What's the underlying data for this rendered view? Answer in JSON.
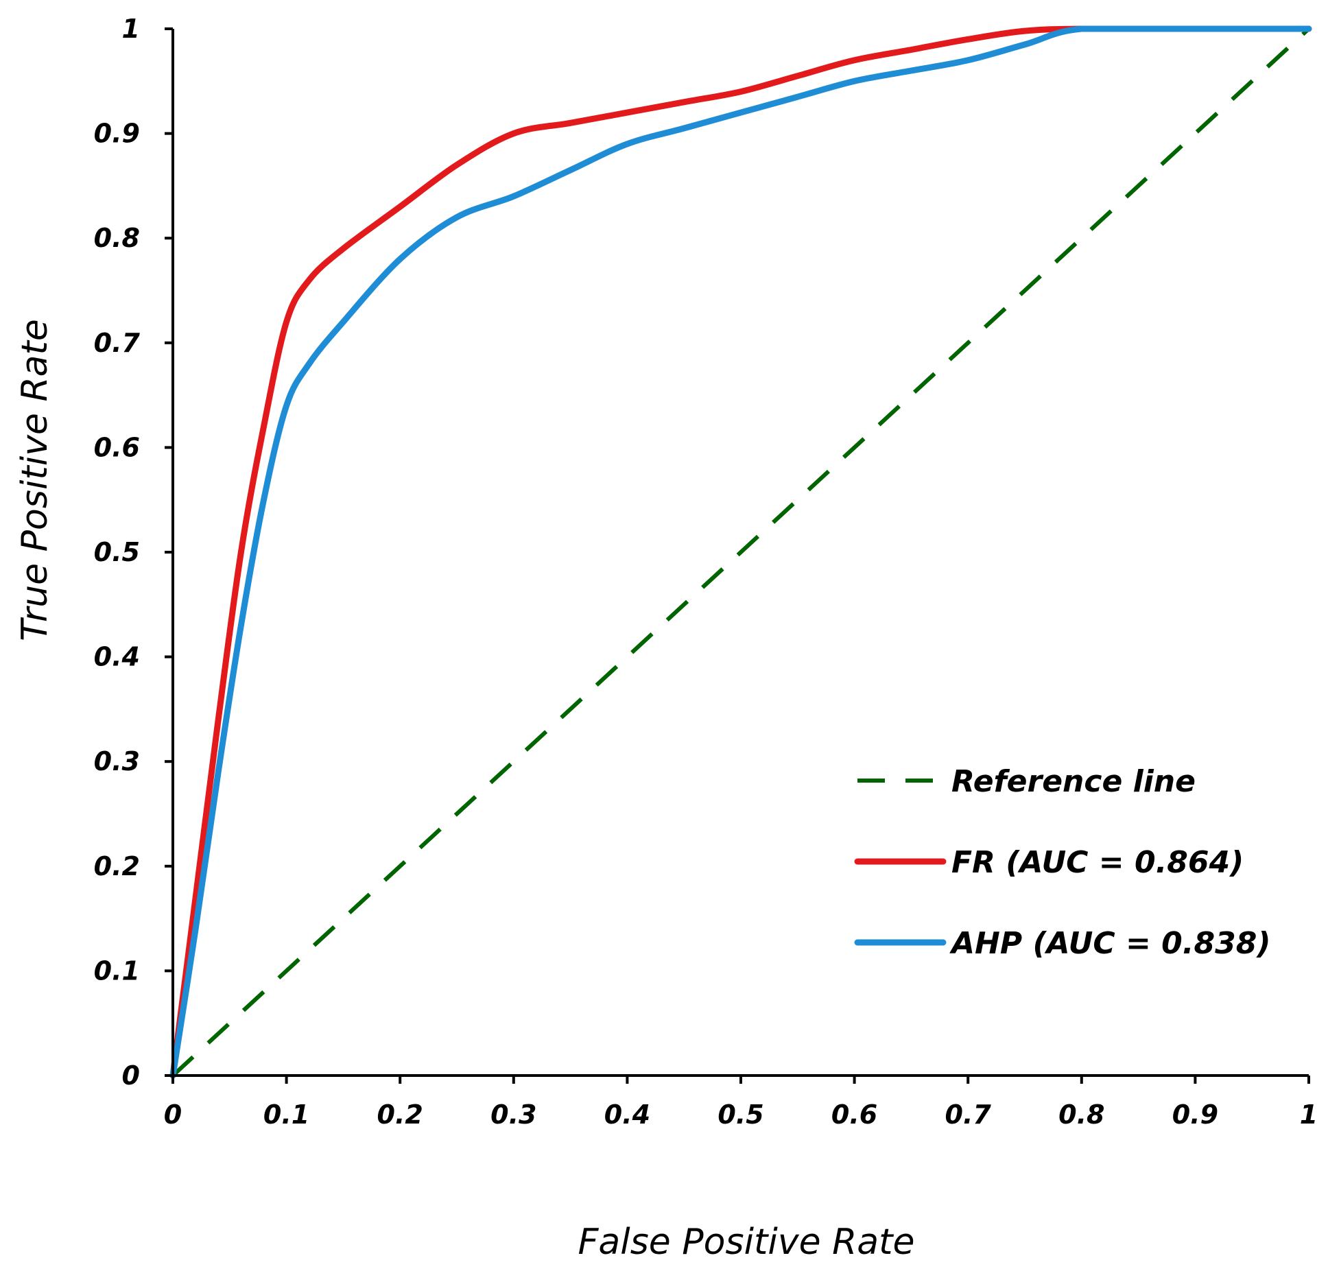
{
  "chart_data": {
    "type": "line",
    "xlabel": "False Positive Rate",
    "ylabel": "True Positive Rate",
    "xlim": [
      0,
      1
    ],
    "ylim": [
      0,
      1
    ],
    "x_ticks": [
      "0",
      "0.1",
      "0.2",
      "0.3",
      "0.4",
      "0.5",
      "0.6",
      "0.7",
      "0.8",
      "0.9",
      "1"
    ],
    "y_ticks": [
      "0",
      "0.1",
      "0.2",
      "0.3",
      "0.4",
      "0.5",
      "0.6",
      "0.7",
      "0.8",
      "0.9",
      "1"
    ],
    "grid": false,
    "legend_position": "bottom-right",
    "series": [
      {
        "name": "Reference line",
        "color": "#006400",
        "style": "dashed",
        "x": [
          0,
          1
        ],
        "y": [
          0,
          1
        ]
      },
      {
        "name": "FR (AUC = 0.864)",
        "color": "#e31a1c",
        "style": "solid",
        "x": [
          0,
          0.02,
          0.04,
          0.06,
          0.08,
          0.1,
          0.12,
          0.15,
          0.2,
          0.25,
          0.3,
          0.35,
          0.4,
          0.45,
          0.5,
          0.55,
          0.6,
          0.65,
          0.7,
          0.75,
          0.8,
          0.9,
          1
        ],
        "y": [
          0,
          0.17,
          0.34,
          0.5,
          0.62,
          0.72,
          0.76,
          0.79,
          0.83,
          0.87,
          0.9,
          0.91,
          0.92,
          0.93,
          0.94,
          0.955,
          0.97,
          0.98,
          0.99,
          0.998,
          1,
          1,
          1
        ]
      },
      {
        "name": "AHP (AUC = 0.838)",
        "color": "#1f8dd6",
        "style": "solid",
        "x": [
          0,
          0.02,
          0.04,
          0.06,
          0.08,
          0.1,
          0.12,
          0.15,
          0.2,
          0.25,
          0.3,
          0.35,
          0.4,
          0.45,
          0.5,
          0.55,
          0.6,
          0.65,
          0.7,
          0.75,
          0.8,
          0.9,
          1
        ],
        "y": [
          0,
          0.14,
          0.29,
          0.43,
          0.55,
          0.64,
          0.68,
          0.72,
          0.78,
          0.82,
          0.84,
          0.865,
          0.89,
          0.905,
          0.92,
          0.935,
          0.95,
          0.96,
          0.97,
          0.985,
          1,
          1,
          1
        ]
      }
    ]
  }
}
